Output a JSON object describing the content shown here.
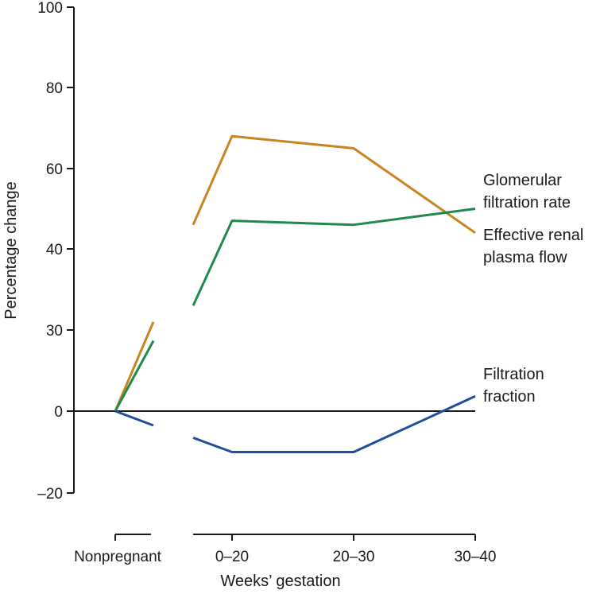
{
  "chart_data": {
    "type": "line",
    "title": "",
    "xlabel": "Weeks’ gestation",
    "ylabel": "Percentage change",
    "categories": [
      "Nonpregnant",
      "0–20",
      "20–30",
      "30–40"
    ],
    "yticks": [
      "100",
      "80",
      "60",
      "40",
      "30",
      "0",
      "–20"
    ],
    "grid": false,
    "legend": "direct labels at right end of lines",
    "series": [
      {
        "name": "Glomerular filtration rate",
        "label_lines": [
          "Glomerular",
          "filtration rate"
        ],
        "color": "#c8841f",
        "pre_segment": [
          [
            0,
            0
          ],
          [
            0.25,
            31
          ]
        ],
        "points": [
          [
            0.5,
            46
          ],
          [
            1,
            68
          ],
          [
            2,
            65
          ],
          [
            3,
            44
          ]
        ]
      },
      {
        "name": "Effective renal plasma flow",
        "label_lines": [
          "Effective renal",
          "plasma flow"
        ],
        "color": "#1f8a4c",
        "pre_segment": [
          [
            0,
            0
          ],
          [
            0.25,
            26
          ]
        ],
        "points": [
          [
            0.5,
            33
          ],
          [
            1,
            47
          ],
          [
            2,
            46
          ],
          [
            3,
            50
          ]
        ]
      },
      {
        "name": "Filtration fraction",
        "label_lines": [
          "Filtration",
          "fraction"
        ],
        "color": "#1f4f9a",
        "pre_segment": [
          [
            0,
            0
          ],
          [
            0.25,
            -3.5
          ]
        ],
        "points": [
          [
            0.5,
            -6.5
          ],
          [
            1,
            -10
          ],
          [
            2,
            -10
          ],
          [
            3,
            5.5
          ]
        ]
      }
    ]
  }
}
